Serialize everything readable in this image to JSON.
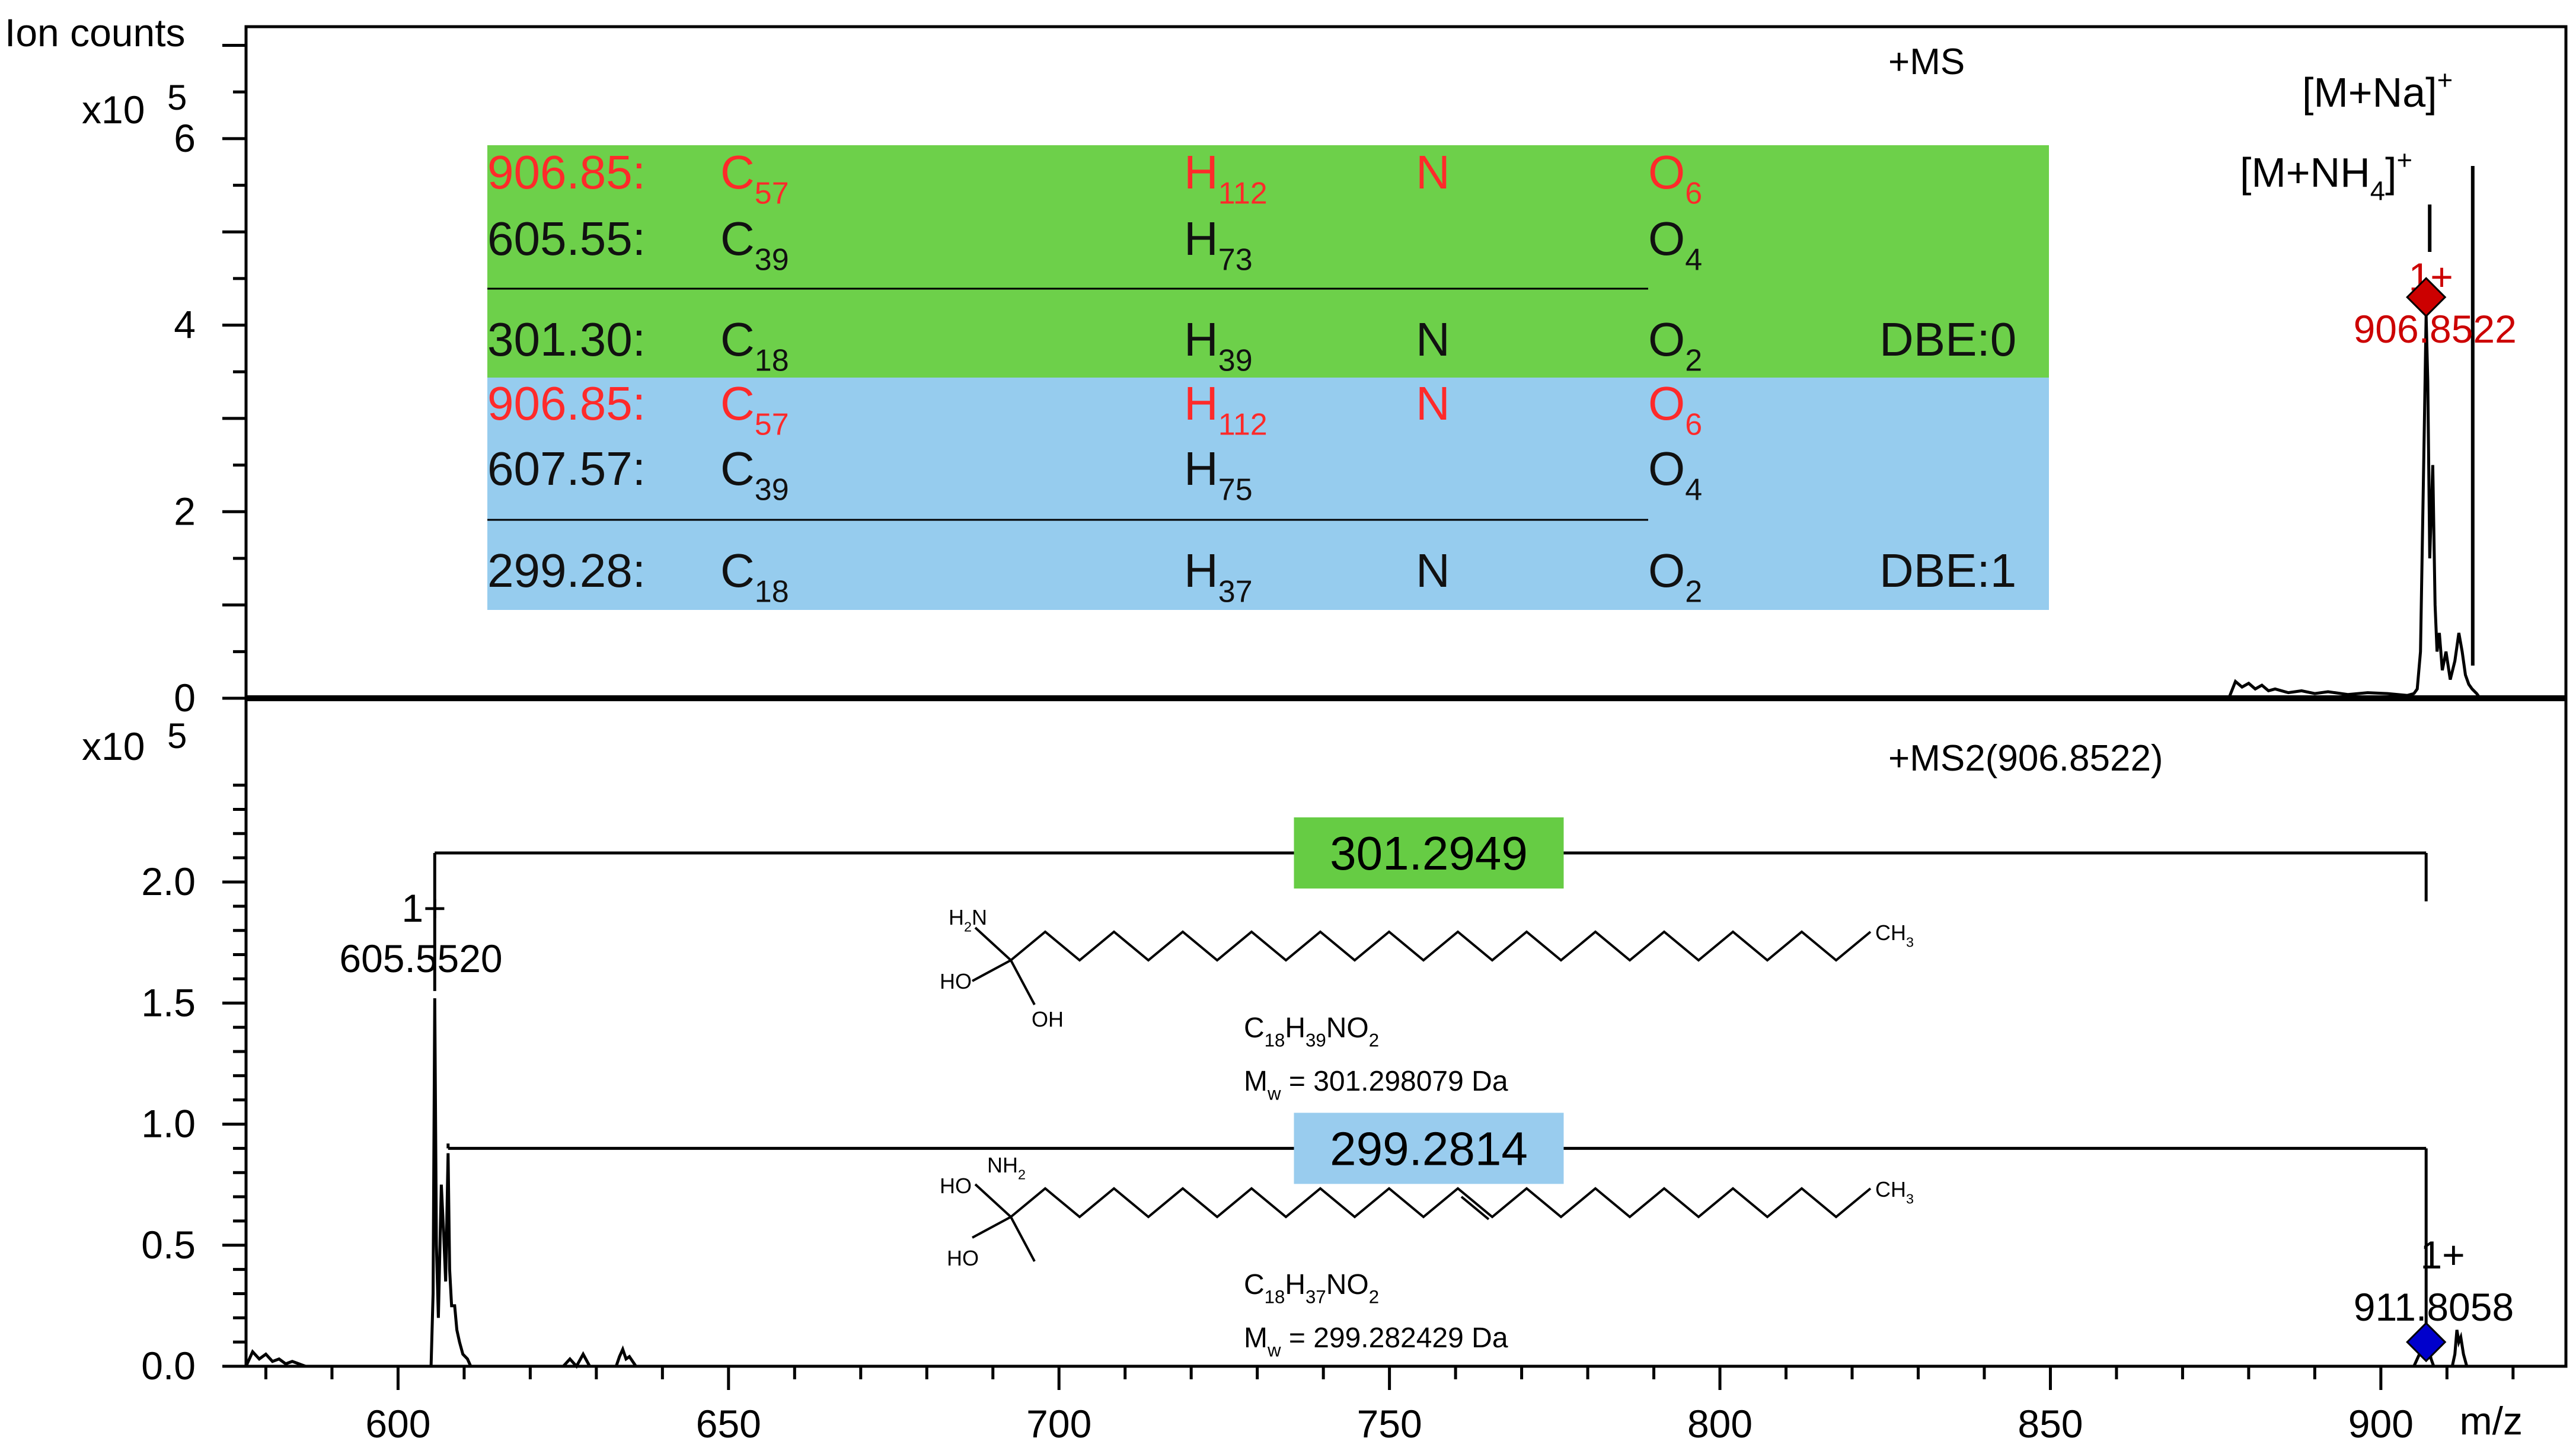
{
  "chart_data": [
    {
      "type": "line",
      "title": "+MS",
      "ylabel": "Ion counts",
      "y_multiplier": "x10",
      "y_exponent": "5",
      "ylim": [
        0,
        7.2
      ],
      "y_ticks": [
        "0",
        "2",
        "4",
        "6"
      ],
      "xlim": [
        577,
        928
      ],
      "series": [
        {
          "x": [
            877,
            878,
            879,
            880,
            881,
            882,
            883,
            884,
            886,
            888,
            890,
            892,
            895,
            898,
            901,
            904,
            905,
            905.5,
            906,
            906.6,
            906.85,
            907.1,
            907.4,
            907.85,
            908.2,
            908.5,
            908.85,
            909.3,
            909.85,
            910.5,
            911.2,
            911.8,
            912.3,
            912.8,
            913.3,
            913.8,
            914.5,
            915
          ],
          "y": [
            0,
            0.18,
            0.12,
            0.16,
            0.1,
            0.14,
            0.08,
            0.1,
            0.06,
            0.08,
            0.05,
            0.07,
            0.04,
            0.06,
            0.05,
            0.03,
            0.05,
            0.1,
            0.5,
            3.0,
            4.1,
            3.4,
            1.5,
            2.5,
            1.0,
            0.5,
            0.7,
            0.3,
            0.5,
            0.2,
            0.4,
            0.7,
            0.5,
            0.25,
            0.15,
            0.1,
            0.05,
            0
          ]
        }
      ],
      "peak_labels": [
        {
          "x": 906.85,
          "charge": "1+",
          "mz": "906.8522",
          "marker": "diamond",
          "color": "#cc0000",
          "y": 4.3
        }
      ],
      "annotations": {
        "na_label": "[M+Na]",
        "na_sup": "+",
        "nh4_label": "[M+NH",
        "nh4_sub": "4",
        "nh4_close": "]",
        "nh4_sup": "+"
      }
    },
    {
      "type": "line",
      "title": "+MS2(906.8522)",
      "y_multiplier": "x10",
      "y_exponent": "5",
      "xlabel": "m/z",
      "ylim": [
        0,
        2.4
      ],
      "y_ticks": [
        "0.0",
        "0.5",
        "1.0",
        "1.5",
        "2.0"
      ],
      "xlim": [
        577,
        928
      ],
      "x_ticks": [
        "600",
        "650",
        "700",
        "750",
        "800",
        "850",
        "900"
      ],
      "series": [
        {
          "x": [
            577,
            578,
            579,
            580,
            581,
            582,
            583,
            584,
            585,
            586,
            605,
            605.3,
            605.55,
            605.8,
            606.1,
            606.55,
            606.9,
            607.2,
            607.57,
            607.8,
            608.1,
            608.57,
            608.9,
            609.3,
            609.8,
            610.5,
            611,
            625,
            626,
            627,
            628,
            629,
            633,
            633.5,
            634,
            634.5,
            635,
            636,
            905,
            905.5,
            906,
            906.3,
            906.85,
            907.2,
            907.6,
            908,
            910.8,
            911.2,
            911.5,
            911.8,
            912.1,
            912.5,
            913
          ],
          "y": [
            0,
            0.06,
            0.03,
            0.05,
            0.02,
            0.03,
            0.01,
            0.02,
            0.01,
            0,
            0,
            0.3,
            1.52,
            0.5,
            0.2,
            0.75,
            0.55,
            0.35,
            0.88,
            0.4,
            0.25,
            0.25,
            0.15,
            0.1,
            0.05,
            0.03,
            0,
            0,
            0.03,
            0,
            0.05,
            0,
            0,
            0.04,
            0.07,
            0.03,
            0.04,
            0,
            0,
            0.03,
            0.06,
            0.12,
            0.12,
            0.08,
            0.03,
            0,
            0,
            0.05,
            0.15,
            0.1,
            0.12,
            0.05,
            0
          ]
        }
      ],
      "peak_labels": [
        {
          "x": 605.55,
          "charge": "1+",
          "mz": "605.5520",
          "y": 1.52
        },
        {
          "x": 906.85,
          "charge": "1+",
          "mz": "911.8058",
          "marker": "diamond",
          "color": "#0000cc",
          "y": 0.1
        }
      ],
      "brackets": [
        {
          "from": 605.55,
          "to": 906.85,
          "y": 2.12,
          "label": "301.2949",
          "box_color": "#66cc44"
        },
        {
          "from": 607.57,
          "to": 906.85,
          "y": 0.9,
          "label": "299.2814",
          "box_color": "#99ccee"
        }
      ]
    }
  ],
  "formula_table": {
    "green_color": "#6dd04a",
    "blue_color": "#96ccee",
    "highlight_color": "#ff2a2a",
    "rows": [
      {
        "band": "green",
        "mz": "906.85:",
        "c": "C",
        "c_sub": "57",
        "h": "H",
        "h_sub": "112",
        "n": "N",
        "o": "O",
        "o_sub": "6",
        "dbe": "",
        "highlight": true
      },
      {
        "band": "green",
        "mz": "605.55:",
        "c": "C",
        "c_sub": "39",
        "h": "H",
        "h_sub": "73",
        "n": "",
        "o": "O",
        "o_sub": "4",
        "dbe": "",
        "highlight": false
      },
      {
        "band": "green",
        "mz": "301.30:",
        "c": "C",
        "c_sub": "18",
        "h": "H",
        "h_sub": "39",
        "n": "N",
        "o": "O",
        "o_sub": "2",
        "dbe": "DBE:0",
        "highlight": false
      },
      {
        "band": "blue",
        "mz": "906.85:",
        "c": "C",
        "c_sub": "57",
        "h": "H",
        "h_sub": "112",
        "n": "N",
        "o": "O",
        "o_sub": "6",
        "dbe": "",
        "highlight": true
      },
      {
        "band": "blue",
        "mz": "607.57:",
        "c": "C",
        "c_sub": "39",
        "h": "H",
        "h_sub": "75",
        "n": "",
        "o": "O",
        "o_sub": "4",
        "dbe": "",
        "highlight": false
      },
      {
        "band": "blue",
        "mz": "299.28:",
        "c": "C",
        "c_sub": "18",
        "h": "H",
        "h_sub": "37",
        "n": "N",
        "o": "O",
        "o_sub": "2",
        "dbe": "DBE:1",
        "highlight": false
      }
    ]
  },
  "structures": [
    {
      "groups": [
        "H2N",
        "HO",
        "OH",
        "CH3"
      ],
      "formula_parts": [
        "C",
        "18",
        "H",
        "39",
        "NO",
        "2"
      ],
      "mw_prefix": "M",
      "mw_sub": "w",
      "mw_value": " = 301.298079 Da",
      "double_bond": false
    },
    {
      "groups": [
        "NH2",
        "HO",
        "HO",
        "CH3"
      ],
      "formula_parts": [
        "C",
        "18",
        "H",
        "37",
        "NO",
        "2"
      ],
      "mw_prefix": "M",
      "mw_sub": "w",
      "mw_value": " = 299.282429 Da",
      "double_bond": true
    }
  ]
}
